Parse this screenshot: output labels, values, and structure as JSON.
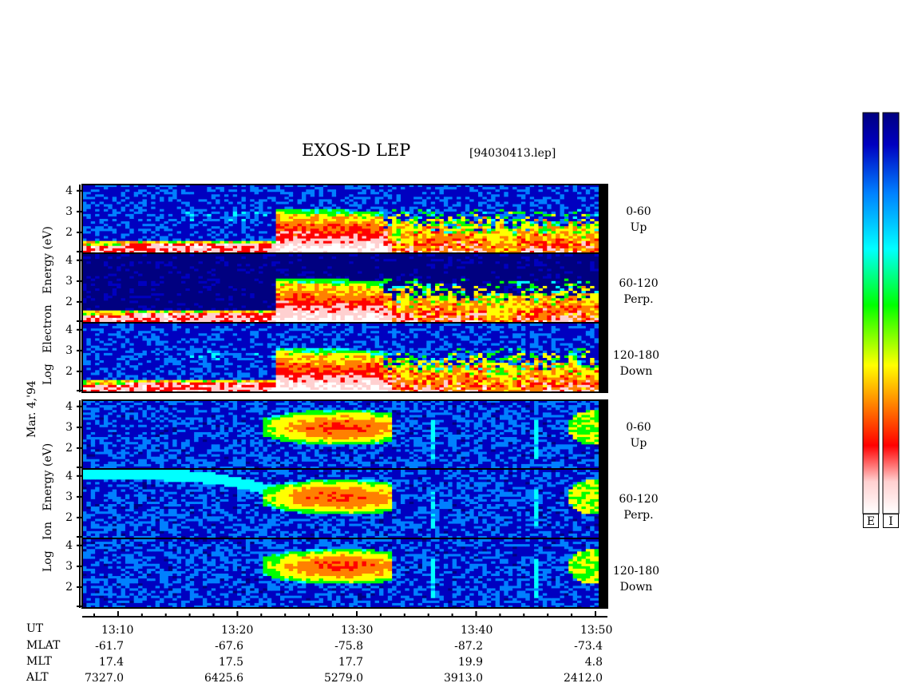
{
  "header": {
    "title": "EXOS-D LEP",
    "filename": "[94030413.lep]"
  },
  "side_labels": {
    "date": "Mar. 4,'94",
    "electron_label": [
      "Log",
      "Electron",
      "Energy",
      "(eV)"
    ],
    "ion_label": [
      "Log",
      "Ion",
      "Energy",
      "(eV)"
    ]
  },
  "angle_labels": [
    {
      "range": "0-60",
      "dir": "Up"
    },
    {
      "range": "60-120",
      "dir": "Perp."
    },
    {
      "range": "120-180",
      "dir": "Down"
    },
    {
      "range": "0-60",
      "dir": "Up"
    },
    {
      "range": "60-120",
      "dir": "Perp."
    },
    {
      "range": "120-180",
      "dir": "Down"
    }
  ],
  "footer": {
    "row_labels": [
      "UT",
      "MLAT",
      "MLT",
      "ALT"
    ],
    "columns": [
      {
        "ut": "13:10",
        "mlat": "-61.7",
        "mlt": "17.4",
        "alt": "7327.0"
      },
      {
        "ut": "13:20",
        "mlat": "-67.6",
        "mlt": "17.5",
        "alt": "6425.6"
      },
      {
        "ut": "13:30",
        "mlat": "-75.8",
        "mlt": "17.7",
        "alt": "5279.0"
      },
      {
        "ut": "13:40",
        "mlat": "-87.2",
        "mlt": "19.9",
        "alt": "3913.0"
      },
      {
        "ut": "13:50",
        "mlat": "-73.4",
        "mlt": "4.8",
        "alt": "2412.0"
      }
    ]
  },
  "colorbar": {
    "labels": [
      "E",
      "I"
    ],
    "colors": [
      "#ffffff",
      "#ffd0d0",
      "#ff0000",
      "#ff8000",
      "#ffff00",
      "#00ff00",
      "#00ffff",
      "#0080ff",
      "#0000c0",
      "#000080"
    ]
  },
  "chart_data": {
    "type": "heatmap",
    "title": "EXOS-D LEP",
    "x_axis": {
      "label": "UT",
      "range": [
        "13:07",
        "13:51"
      ],
      "tick_labels": [
        "13:10",
        "13:20",
        "13:30",
        "13:40",
        "13:50"
      ]
    },
    "y_axis": {
      "label": "Log Energy (eV)",
      "range": [
        1,
        4
      ],
      "tick_labels": [
        "2",
        "3",
        "4"
      ]
    },
    "panels": [
      {
        "species": "Electron",
        "pitch_angle": "0-60",
        "direction": "Up"
      },
      {
        "species": "Electron",
        "pitch_angle": "60-120",
        "direction": "Perp."
      },
      {
        "species": "Electron",
        "pitch_angle": "120-180",
        "direction": "Down"
      },
      {
        "species": "Ion",
        "pitch_angle": "0-60",
        "direction": "Up"
      },
      {
        "species": "Ion",
        "pitch_angle": "60-120",
        "direction": "Perp."
      },
      {
        "species": "Ion",
        "pitch_angle": "120-180",
        "direction": "Down"
      }
    ],
    "colorscale": [
      "#000080",
      "#0000c0",
      "#0080ff",
      "#00ffff",
      "#00ff00",
      "#ffff00",
      "#ff8000",
      "#ff0000",
      "#ffd0d0",
      "#ffffff"
    ]
  }
}
